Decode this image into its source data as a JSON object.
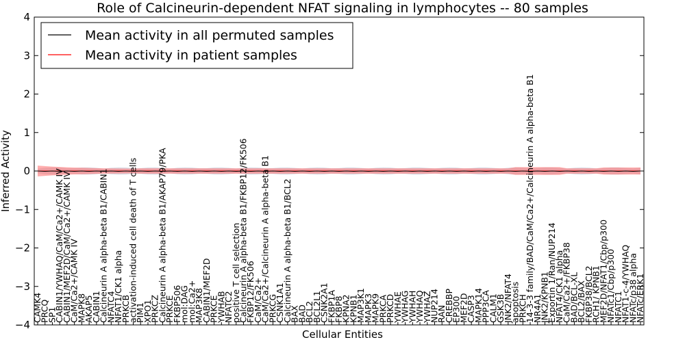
{
  "chart_data": {
    "type": "line",
    "title": "Role of Calcineurin-dependent NFAT signaling in lymphocytes -- 80 samples",
    "xlabel": "Cellular Entities",
    "ylabel": "Inferred Activity",
    "ylim": [
      -4,
      4
    ],
    "yticks": [
      "4",
      "3",
      "2",
      "1",
      "0",
      "−1",
      "−2",
      "−3",
      "−4"
    ],
    "yticks_values": [
      4,
      3,
      2,
      1,
      0,
      -1,
      -2,
      -3,
      -4
    ],
    "legend": {
      "position": "top-left",
      "entries": [
        {
          "label": "Mean activity in all permuted samples",
          "color": "#000000"
        },
        {
          "label": "Mean activity in patient samples",
          "color": "#ff0000"
        }
      ]
    },
    "categories": [
      "CAMK4",
      "PRCQ",
      "SP1",
      "CABIN1/YWHAQ/CaM/Ca2+/CAMK IV",
      "CABIN1/MEF2D/CaM/Ca2+/CAMK IV",
      "CaM/Ca2+/CAMK IV",
      "MAPK8",
      "AKAP5",
      "CABIN1",
      "Calcineurin A alpha-beta B1/CABIN1",
      "NFATC4",
      "NFAT1/CK1 alpha",
      "PRKCB",
      "activation-induced cell death of T cells",
      "PIM1",
      "XPO1",
      "PRKCZ",
      "Calcineurin A alpha-beta B1/AKAP79/PKA",
      "PRKCE",
      "FKBP506",
      "mol:DAG",
      "mol:Ca2+",
      "MAP3K8",
      "CABIN1/MEF2D",
      "PRKCE",
      "YWHAB",
      "NFATC2",
      "positive T cell selection",
      "Calcineurin A alpha-beta B1/FKBP12/FK506",
      "FKBP12/FK506",
      "CaM/Ca2+",
      "CaM/Ca2+/Calcineurin A alpha-beta B1",
      "PRKCG",
      "CSNK1A1",
      "Calcineurin A alpha-beta B1/BCL2",
      "BAX",
      "BAD",
      "BCL2",
      "BCL2L1",
      "CSNK2A1",
      "FKBP1A",
      "FKBP8",
      "KPNA2",
      "KPNB1",
      "MAP3K1",
      "MAPK3",
      "MAPK9",
      "PRKCA",
      "PRKCD",
      "YWHAE",
      "YWHAG",
      "YWHAH",
      "YWHAQ",
      "YWHAZ",
      "NUP214",
      "RAN",
      "CREBBP",
      "EP300",
      "MEF2D",
      "CASP3",
      "MAPK14",
      "PPP3CA",
      "CALM1",
      "GSK3B",
      "JNK2/NFAT4",
      "apoptosis",
      "PRKCH",
      "14-3-3 family/BAD/CaM/Ca2+/Calcineurin A alpha-beta B1",
      "NR4A1",
      "JNK2/KPNB1",
      "Exportin 1/Ran/NUP214",
      "NFAT4/CK1 alpha",
      "CaM/Ca2+/FKBP38",
      "BAD/BCL-XL",
      "BCL2/BAX",
      "FKBP38/BCL2",
      "RCH1/ KPNB1",
      "MEF2D/NFAT1/Cbp/p300",
      "NFATc1/Cbp/p300",
      "NFATC1",
      "NFAT1-c-4/YWHAQ",
      "NFATc/p38 alpha",
      "NFATc/ERK1"
    ]
  }
}
